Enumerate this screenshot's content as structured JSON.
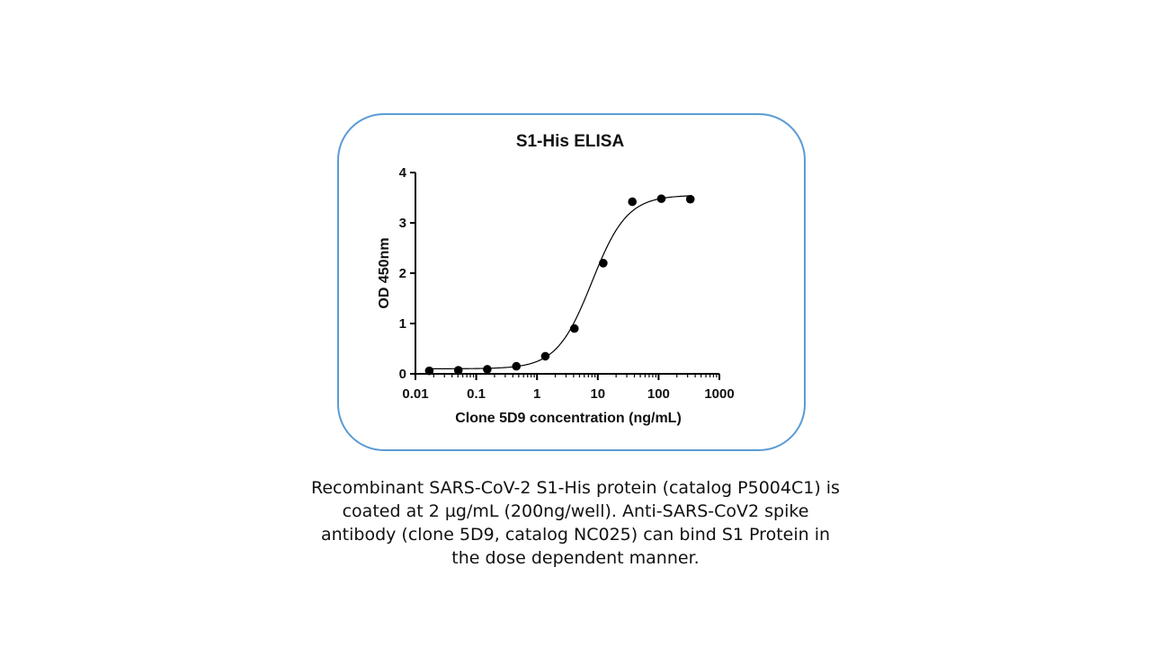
{
  "chart_data": {
    "type": "scatter",
    "title": "S1-His ELISA",
    "xlabel": "Clone 5D9 concentration (ng/mL)",
    "ylabel": "OD 450nm",
    "x_scale": "log",
    "xlim": [
      0.01,
      1000
    ],
    "ylim": [
      0,
      4
    ],
    "x_ticks": [
      "0.01",
      "0.1",
      "1",
      "10",
      "100",
      "1000"
    ],
    "y_ticks": [
      "0",
      "1",
      "2",
      "3",
      "4"
    ],
    "grid": false,
    "legend": "none",
    "series": [
      {
        "x": [
          0.0169,
          0.0508,
          0.152,
          0.457,
          1.37,
          4.12,
          12.3,
          37.0,
          111,
          333
        ],
        "y": [
          0.06,
          0.07,
          0.09,
          0.15,
          0.35,
          0.9,
          2.2,
          3.42,
          3.48,
          3.47
        ]
      }
    ],
    "fit": {
      "model": "4PL",
      "bottom": 0.1,
      "top": 3.55,
      "ec50": 8.0,
      "hill": 1.5
    },
    "colors": {
      "points": "#000000",
      "curve": "#000000",
      "frame": "#5b9bd5"
    }
  },
  "caption": [
    "Recombinant SARS-CoV-2 S1-His protein (catalog P5004C1) is",
    "coated at 2 µg/mL (200ng/well). Anti-SARS-CoV2 spike",
    "antibody (clone 5D9, catalog NC025) can bind S1 Protein in",
    "the dose dependent manner."
  ]
}
